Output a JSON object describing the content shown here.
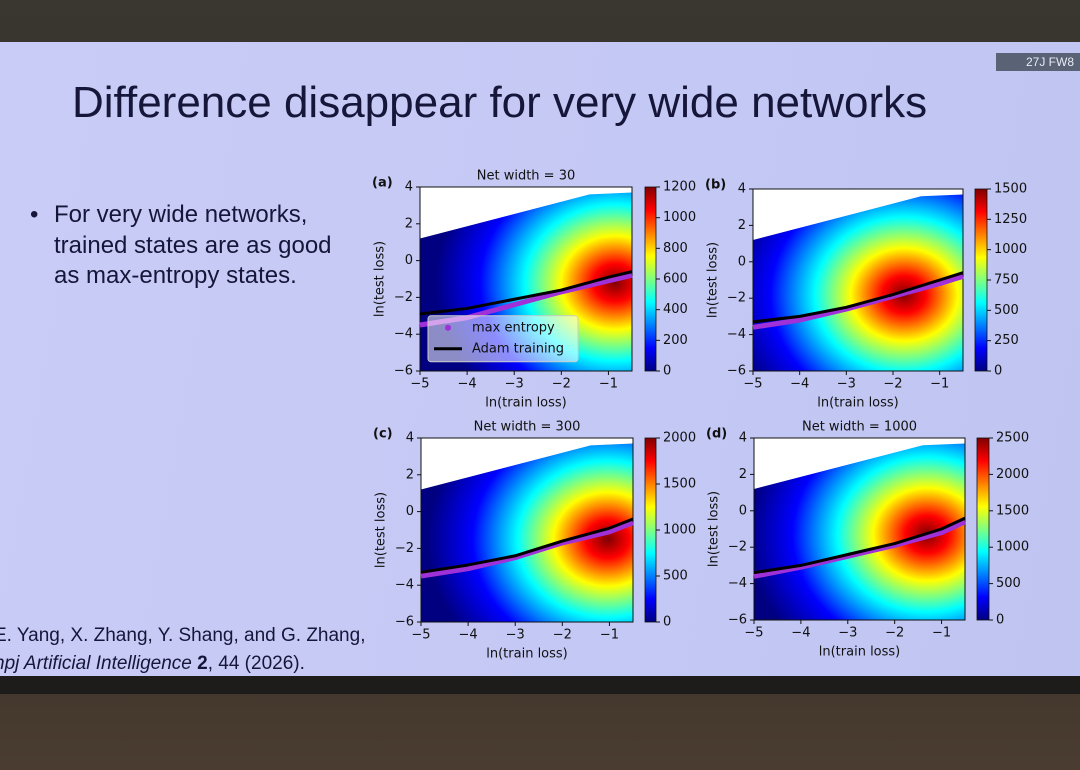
{
  "slide": {
    "badge": "27J FW8",
    "title": "Difference disappear for very wide networks",
    "bullet": "For very wide networks, trained states are as good as max-entropy states.",
    "citation": {
      "authors": "E. Yang, X. Zhang, Y. Shang, and G. Zhang,",
      "journal": "npj Artificial Intelligence",
      "volume": "2",
      "rest": ", 44 (2026)."
    }
  },
  "chart_data": [
    {
      "type": "heatmap",
      "panel": "(a)",
      "title": "Net width = 30",
      "xlabel": "ln(train loss)",
      "ylabel": "ln(test loss)",
      "xlim": [
        -5,
        -0.5
      ],
      "ylim": [
        -6,
        4
      ],
      "xticks": [
        {
          "value": -5,
          "label": "−5"
        },
        {
          "value": -4,
          "label": "−4"
        },
        {
          "value": -3,
          "label": "−3"
        },
        {
          "value": -2,
          "label": "−2"
        },
        {
          "value": -1,
          "label": "−1"
        }
      ],
      "yticks": [
        {
          "value": -6,
          "label": "−6"
        },
        {
          "value": -4,
          "label": "−4"
        },
        {
          "value": -2,
          "label": "−2"
        },
        0,
        2,
        4
      ],
      "zlim": [
        0,
        1200
      ],
      "zticks": [
        0,
        200,
        400,
        600,
        800,
        1000,
        1200
      ],
      "x": [
        -5,
        -4,
        -3,
        -2,
        -1,
        -0.5
      ],
      "legend": "lower left",
      "series": [
        {
          "name": "max entropy",
          "color": "#a030d8",
          "values": [
            -3.5,
            -3.1,
            -2.4,
            -1.7,
            -1.1,
            -0.8
          ]
        },
        {
          "name": "Adam training",
          "color": "#000000",
          "values": [
            -2.9,
            -2.6,
            -2.1,
            -1.6,
            -0.9,
            -0.6
          ]
        }
      ]
    },
    {
      "type": "heatmap",
      "panel": "(b)",
      "xlabel": "ln(train loss)",
      "ylabel": "ln(test loss)",
      "xlim": [
        -5,
        -0.5
      ],
      "ylim": [
        -6,
        4
      ],
      "xticks": [
        {
          "value": -5,
          "label": "−5"
        },
        {
          "value": -4,
          "label": "−4"
        },
        {
          "value": -3,
          "label": "−3"
        },
        {
          "value": -2,
          "label": "−2"
        },
        {
          "value": -1,
          "label": "−1"
        }
      ],
      "yticks": [
        {
          "value": -6,
          "label": "−6"
        },
        {
          "value": -4,
          "label": "−4"
        },
        {
          "value": -2,
          "label": "−2"
        },
        0,
        2,
        4
      ],
      "zlim": [
        0,
        1500
      ],
      "zticks": [
        0,
        250,
        500,
        750,
        1000,
        1250,
        1500
      ],
      "x": [
        -5,
        -4,
        -3,
        -2,
        -1,
        -0.5
      ],
      "series": [
        {
          "color": "#a030d8",
          "values": [
            -3.6,
            -3.2,
            -2.6,
            -1.9,
            -1.2,
            -0.8
          ]
        },
        {
          "color": "#000000",
          "values": [
            -3.3,
            -3.0,
            -2.5,
            -1.8,
            -1.0,
            -0.6
          ]
        }
      ]
    },
    {
      "type": "heatmap",
      "panel": "(c)",
      "title": "Net width = 300",
      "xlabel": "ln(train loss)",
      "ylabel": "ln(test loss)",
      "xlim": [
        -5,
        -0.5
      ],
      "ylim": [
        -6,
        4
      ],
      "xticks": [
        {
          "value": -5,
          "label": "−5"
        },
        {
          "value": -4,
          "label": "−4"
        },
        {
          "value": -3,
          "label": "−3"
        },
        {
          "value": -2,
          "label": "−2"
        },
        {
          "value": -1,
          "label": "−1"
        }
      ],
      "yticks": [
        {
          "value": -6,
          "label": "−6"
        },
        {
          "value": -4,
          "label": "−4"
        },
        {
          "value": -2,
          "label": "−2"
        },
        0,
        2,
        4
      ],
      "zlim": [
        0,
        2000
      ],
      "zticks": [
        0,
        500,
        1000,
        1500,
        2000
      ],
      "x": [
        -5,
        -4,
        -3,
        -2,
        -1,
        -0.5
      ],
      "series": [
        {
          "color": "#a030d8",
          "values": [
            -3.5,
            -3.1,
            -2.5,
            -1.7,
            -1.1,
            -0.6
          ]
        },
        {
          "color": "#000000",
          "values": [
            -3.3,
            -2.9,
            -2.4,
            -1.6,
            -0.9,
            -0.4
          ]
        }
      ]
    },
    {
      "type": "heatmap",
      "panel": "(d)",
      "title": "Net width = 1000",
      "xlabel": "ln(train loss)",
      "ylabel": "ln(test loss)",
      "xlim": [
        -5,
        -0.5
      ],
      "ylim": [
        -6,
        4
      ],
      "xticks": [
        {
          "value": -5,
          "label": "−5"
        },
        {
          "value": -4,
          "label": "−4"
        },
        {
          "value": -3,
          "label": "−3"
        },
        {
          "value": -2,
          "label": "−2"
        },
        {
          "value": -1,
          "label": "−1"
        }
      ],
      "yticks": [
        {
          "value": -6,
          "label": "−6"
        },
        {
          "value": -4,
          "label": "−4"
        },
        {
          "value": -2,
          "label": "−2"
        },
        0,
        2,
        4
      ],
      "zlim": [
        0,
        2500
      ],
      "zticks": [
        0,
        500,
        1000,
        1500,
        2000,
        2500
      ],
      "x": [
        -5,
        -4,
        -3,
        -2,
        -1,
        -0.5
      ],
      "series": [
        {
          "color": "#a030d8",
          "values": [
            -3.6,
            -3.1,
            -2.5,
            -1.9,
            -1.2,
            -0.6
          ]
        },
        {
          "color": "#000000",
          "values": [
            -3.4,
            -3.0,
            -2.4,
            -1.8,
            -1.0,
            -0.4
          ]
        }
      ]
    }
  ]
}
